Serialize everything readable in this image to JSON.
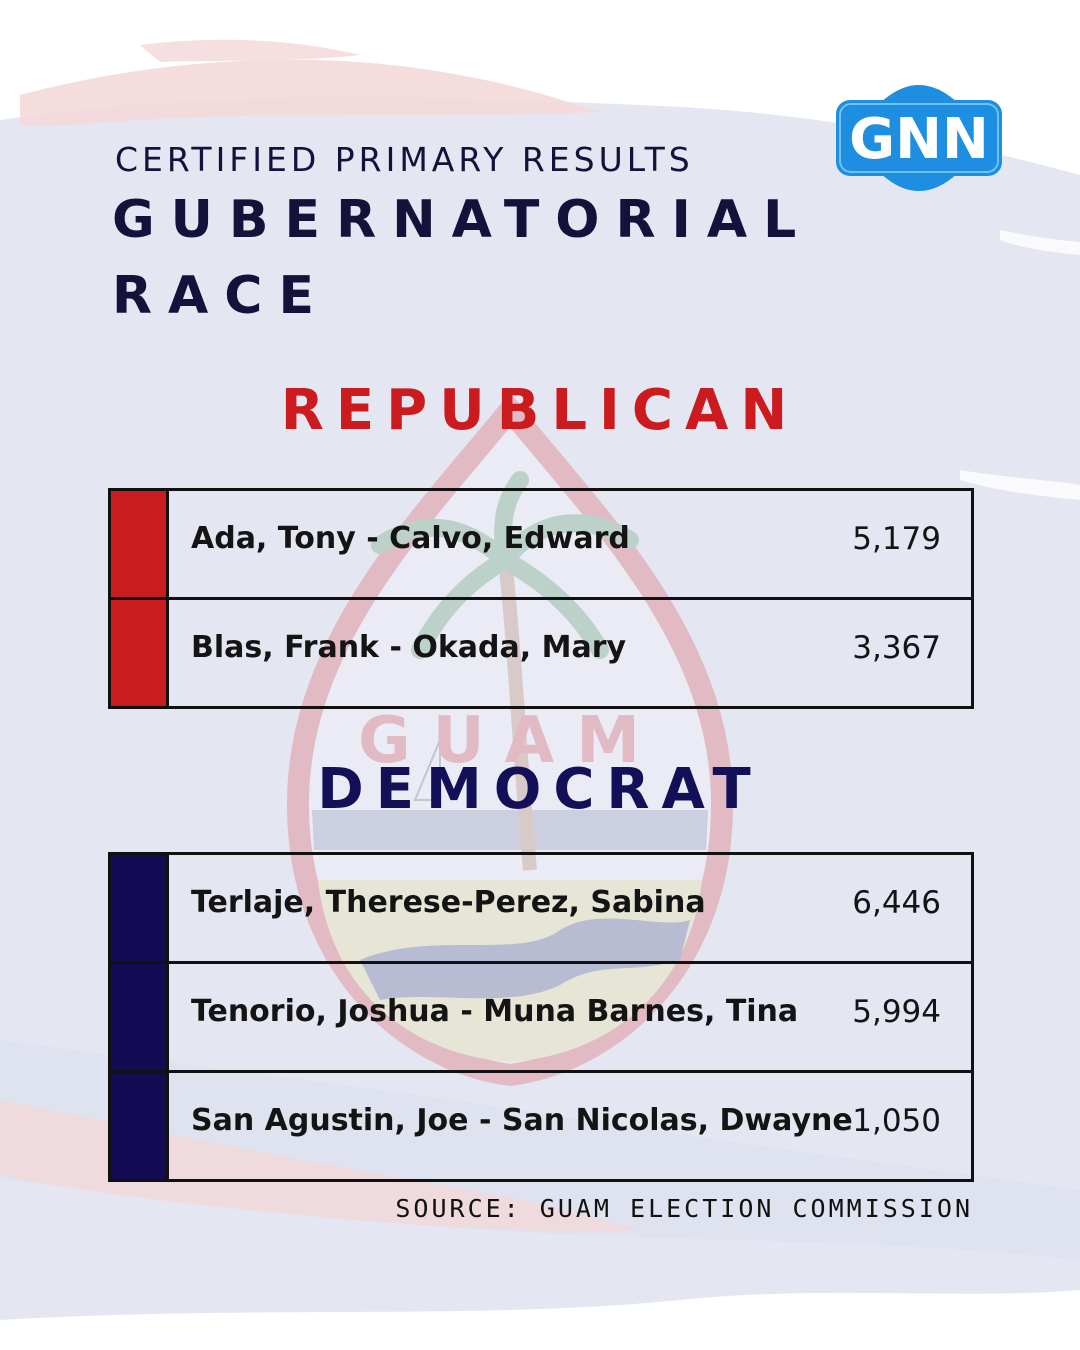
{
  "header": {
    "subtitle": "CERTIFIED PRIMARY RESULTS",
    "title_line1": "GUBERNATORIAL",
    "title_line2": "RACE"
  },
  "logo": {
    "text": "GNN",
    "color": "#1e8fe0"
  },
  "republican": {
    "heading": "REPUBLICAN",
    "color": "#cc1b1e",
    "rows": [
      {
        "ticket": "Ada, Tony - Calvo, Edward",
        "votes": "5,179"
      },
      {
        "ticket": "Blas, Frank - Okada, Mary",
        "votes": "3,367"
      }
    ]
  },
  "democrat": {
    "heading": "DEMOCRAT",
    "color": "#141058",
    "rows": [
      {
        "ticket": "Terlaje, Therese-Perez, Sabina",
        "votes": "6,446"
      },
      {
        "ticket": "Tenorio, Joshua - Muna Barnes, Tina",
        "votes": "5,994"
      },
      {
        "ticket": "San Agustin, Joe - San Nicolas, Dwayne",
        "votes": "1,050"
      }
    ]
  },
  "footer": {
    "source": "SOURCE: GUAM ELECTION COMMISSION"
  },
  "background": {
    "seal_watermark_text": "GUAM"
  }
}
